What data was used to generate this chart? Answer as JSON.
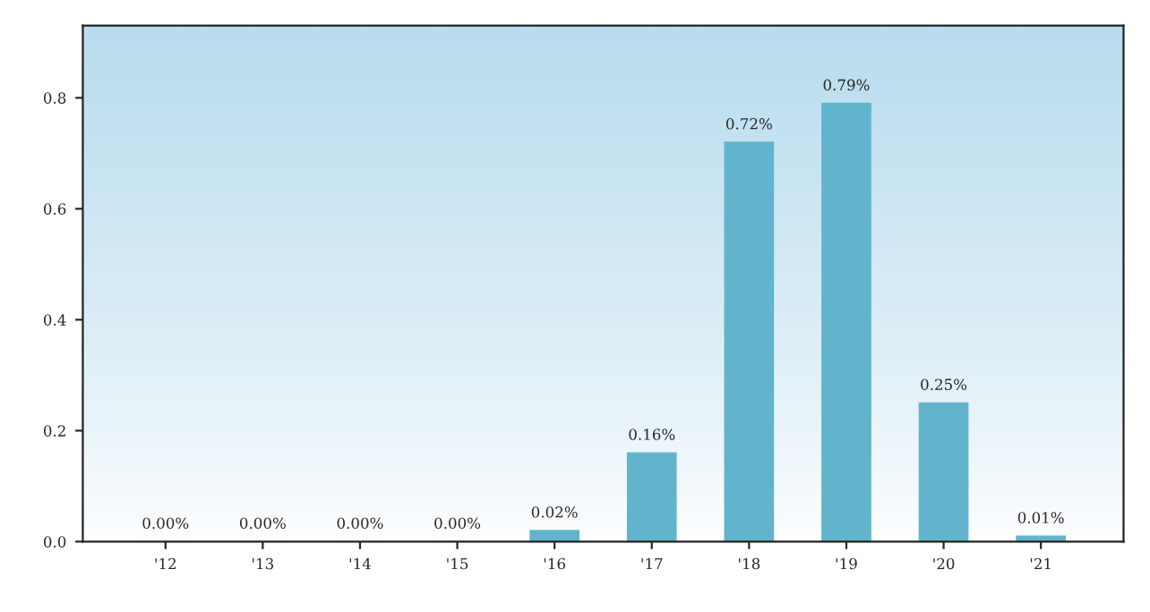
{
  "chart_data": {
    "type": "bar",
    "categories": [
      "'12",
      "'13",
      "'14",
      "'15",
      "'16",
      "'17",
      "'18",
      "'19",
      "'20",
      "'21"
    ],
    "values": [
      0.0,
      0.0,
      0.0,
      0.0,
      0.02,
      0.16,
      0.72,
      0.79,
      0.25,
      0.01
    ],
    "value_labels": [
      "0.00%",
      "0.00%",
      "0.00%",
      "0.00%",
      "0.02%",
      "0.16%",
      "0.72%",
      "0.79%",
      "0.25%",
      "0.01%"
    ],
    "color": "#62b4cc",
    "ylim": [
      0,
      0.93
    ],
    "yticks": [
      {
        "value": 0,
        "label": "0.0"
      },
      {
        "value": 0.2,
        "label": "0.2"
      },
      {
        "value": 0.4,
        "label": "0.4"
      },
      {
        "value": 0.6,
        "label": "0.6"
      },
      {
        "value": 0.8,
        "label": "0.8"
      }
    ],
    "grid": false,
    "legend": false
  }
}
